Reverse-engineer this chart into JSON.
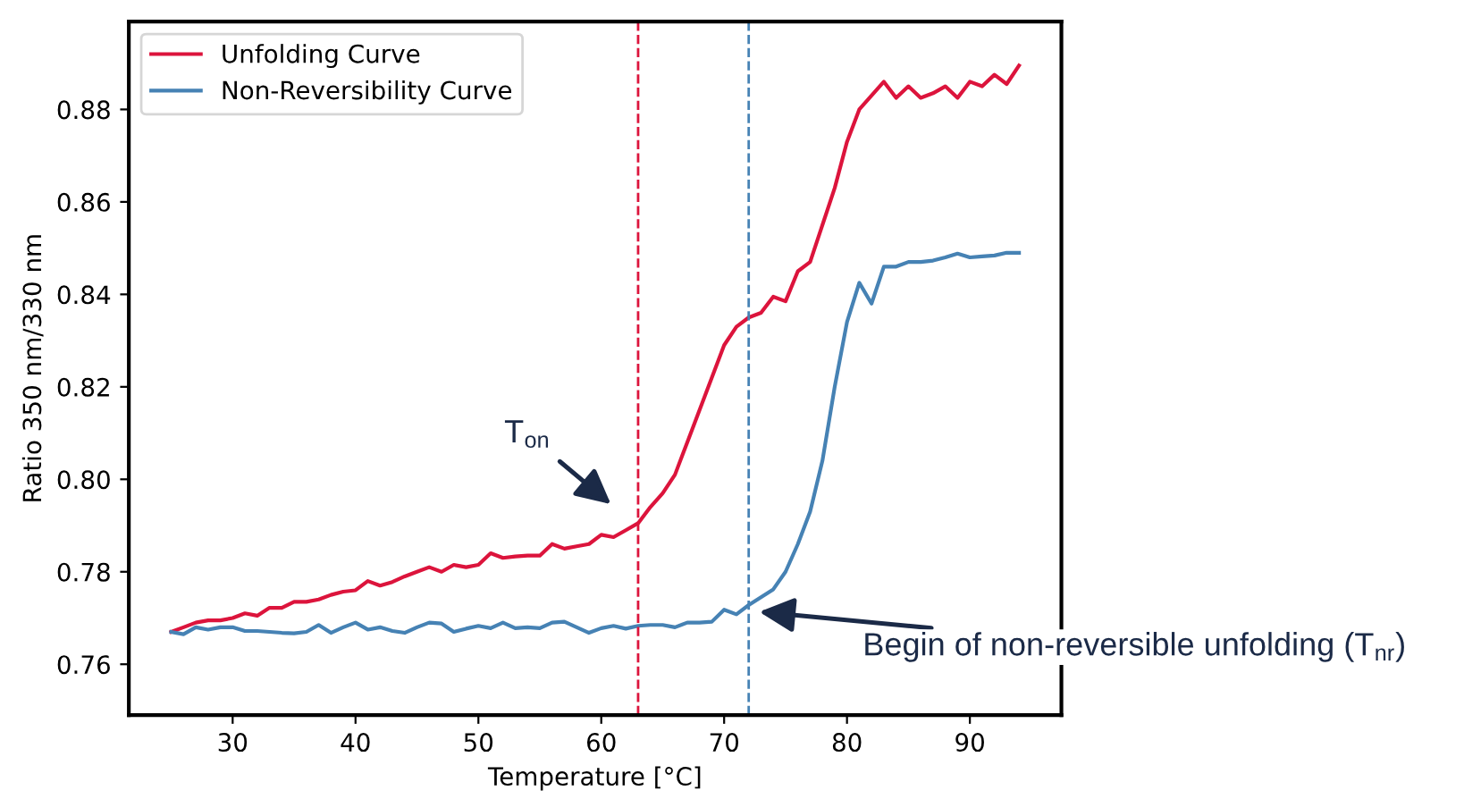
{
  "chart_data": {
    "type": "line",
    "xlabel": "Temperature [°C]",
    "ylabel": "Ratio 350 nm/330 nm",
    "x": [
      25,
      26,
      27,
      28,
      29,
      30,
      31,
      32,
      33,
      34,
      35,
      36,
      37,
      38,
      39,
      40,
      41,
      42,
      43,
      44,
      45,
      46,
      47,
      48,
      49,
      50,
      51,
      52,
      53,
      54,
      55,
      56,
      57,
      58,
      59,
      60,
      61,
      62,
      63,
      64,
      65,
      66,
      67,
      68,
      69,
      70,
      71,
      72,
      73,
      74,
      75,
      76,
      77,
      78,
      79,
      80,
      81,
      82,
      83,
      84,
      85,
      86,
      87,
      88,
      89,
      90,
      91,
      92,
      93,
      94
    ],
    "series": [
      {
        "name": "Unfolding Curve",
        "color": "#dc143c",
        "values": [
          0.767,
          0.768,
          0.769,
          0.7695,
          0.7695,
          0.77,
          0.771,
          0.7705,
          0.7722,
          0.7722,
          0.7735,
          0.7735,
          0.774,
          0.775,
          0.7757,
          0.776,
          0.778,
          0.777,
          0.7778,
          0.779,
          0.78,
          0.781,
          0.78,
          0.7815,
          0.781,
          0.7815,
          0.784,
          0.783,
          0.7833,
          0.7835,
          0.7835,
          0.786,
          0.785,
          0.7855,
          0.786,
          0.788,
          0.7875,
          0.789,
          0.7905,
          0.794,
          0.797,
          0.801,
          0.808,
          0.815,
          0.822,
          0.829,
          0.833,
          0.835,
          0.836,
          0.8395,
          0.8385,
          0.845,
          0.847,
          0.855,
          0.863,
          0.873,
          0.88,
          0.883,
          0.886,
          0.8825,
          0.885,
          0.8825,
          0.8835,
          0.885,
          0.8825,
          0.886,
          0.885,
          0.8875,
          0.8855,
          0.8895
        ]
      },
      {
        "name": "Non-Reversibility Curve",
        "color": "#4682b4",
        "values": [
          0.767,
          0.7665,
          0.768,
          0.7675,
          0.768,
          0.768,
          0.7672,
          0.7672,
          0.767,
          0.7668,
          0.7667,
          0.767,
          0.7685,
          0.7668,
          0.768,
          0.769,
          0.7675,
          0.768,
          0.7672,
          0.7668,
          0.768,
          0.769,
          0.7688,
          0.767,
          0.7677,
          0.7683,
          0.7678,
          0.769,
          0.7678,
          0.768,
          0.7678,
          0.769,
          0.7692,
          0.768,
          0.7668,
          0.7678,
          0.7683,
          0.7677,
          0.7683,
          0.7685,
          0.7685,
          0.768,
          0.769,
          0.769,
          0.7692,
          0.7718,
          0.7708,
          0.7728,
          0.7745,
          0.7762,
          0.78,
          0.786,
          0.793,
          0.804,
          0.82,
          0.834,
          0.8425,
          0.838,
          0.846,
          0.846,
          0.847,
          0.847,
          0.8473,
          0.848,
          0.8488,
          0.848,
          0.8482,
          0.8484,
          0.849,
          0.849
        ]
      }
    ],
    "xlim": [
      21.55,
      97.45
    ],
    "ylim": [
      0.749,
      0.899
    ],
    "xticks": [
      30,
      40,
      50,
      60,
      70,
      80,
      90
    ],
    "yticks": [
      0.76,
      0.78,
      {
        "value": 0.8,
        "label": "0.80"
      },
      0.82,
      0.84,
      0.86,
      0.88
    ],
    "ref_lines": [
      {
        "axis": "x",
        "value": 63,
        "color": "#dc143c",
        "line_style": "dashed"
      },
      {
        "axis": "x",
        "value": 72,
        "color": "#4682b4",
        "line_style": "dashed"
      }
    ],
    "annotations": [
      "T$_{on}$",
      "Begin of non-reversible unfolding (T$_{nr}$)"
    ],
    "legend": "top left",
    "grid": false,
    "line_style": "solid",
    "marker": "none"
  }
}
